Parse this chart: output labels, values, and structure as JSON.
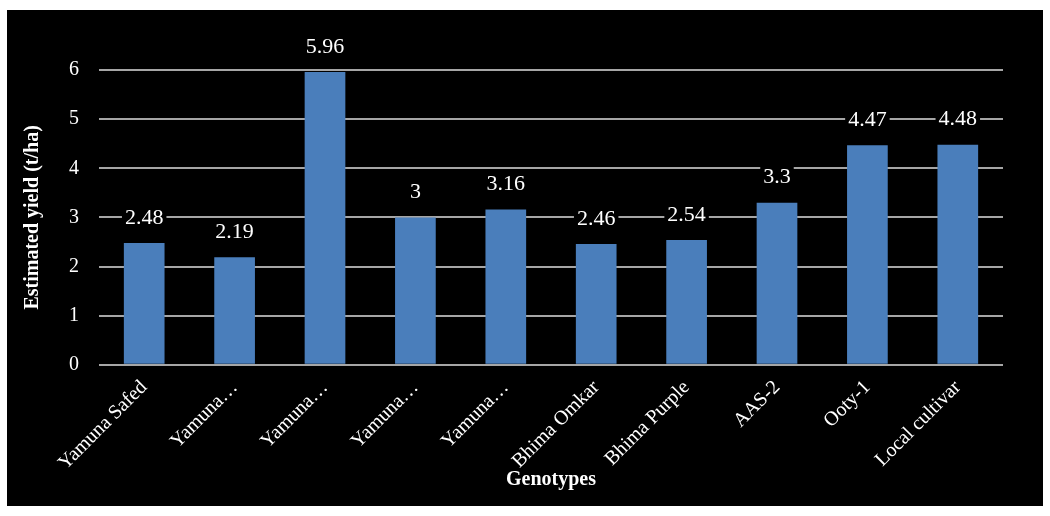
{
  "chart_data": {
    "type": "bar",
    "xlabel": "Genotypes",
    "ylabel": "Estimated yield (t/ha)",
    "categories": [
      "Yamuna Safed",
      "Yamuna…",
      "Yamuna…",
      "Yamuna…",
      "Yamuna…",
      "Bhima Omkar",
      "Bhima Purple",
      "AAS-2",
      "Ooty-1",
      "Local cultivar"
    ],
    "values": [
      2.48,
      2.19,
      5.96,
      3,
      3.16,
      2.46,
      2.54,
      3.3,
      4.47,
      4.48
    ],
    "color": "#4a7ebb",
    "ylim": [
      0,
      6
    ],
    "yticks": [
      0,
      1,
      2,
      3,
      4,
      5,
      6
    ],
    "grid": "y",
    "data_labels": true
  }
}
